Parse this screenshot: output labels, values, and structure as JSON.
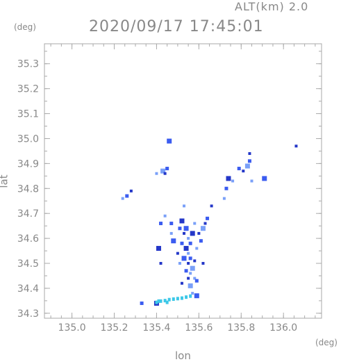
{
  "header": {
    "altitude_label": "ALT(km)  2.0",
    "timestamp": "2020/09/17 17:45:01"
  },
  "chart_data": {
    "type": "scatter",
    "title": "2020/09/17 17:45:01",
    "xlabel": "lon",
    "ylabel": "lat",
    "x_unit": "(deg)",
    "y_unit": "(deg)",
    "xlim": [
      134.87,
      136.18
    ],
    "ylim": [
      34.28,
      35.38
    ],
    "x_ticks": [
      "135.0",
      "135.2",
      "135.4",
      "135.6",
      "135.8",
      "136.0"
    ],
    "y_ticks": [
      "34.3",
      "34.4",
      "34.5",
      "34.6",
      "34.7",
      "34.8",
      "34.9",
      "35.0",
      "35.1",
      "35.2",
      "35.3"
    ],
    "grid": false,
    "colors": {
      "axis": "#888888",
      "echo_blue": "#3b5cf0",
      "echo_dark": "#2437c8",
      "echo_cyan": "#3cc8e8",
      "echo_light": "#7aa0f8"
    },
    "series": [
      {
        "points": [
          [
            135.54,
            34.64
          ],
          [
            135.53,
            34.62
          ],
          [
            135.55,
            34.6
          ],
          [
            135.56,
            34.58
          ],
          [
            135.54,
            34.56
          ],
          [
            135.55,
            34.54
          ],
          [
            135.56,
            34.52
          ],
          [
            135.55,
            34.5
          ],
          [
            135.57,
            34.48
          ],
          [
            135.54,
            34.47
          ],
          [
            135.58,
            34.51
          ],
          [
            135.56,
            34.46
          ],
          [
            135.53,
            34.52
          ],
          [
            135.55,
            34.44
          ],
          [
            135.58,
            34.44
          ],
          [
            135.52,
            34.58
          ],
          [
            135.57,
            34.62
          ],
          [
            135.59,
            34.56
          ],
          [
            135.51,
            34.64
          ],
          [
            135.6,
            34.62
          ],
          [
            135.62,
            34.64
          ],
          [
            135.64,
            34.68
          ],
          [
            135.63,
            34.66
          ],
          [
            135.47,
            34.62
          ],
          [
            135.48,
            34.59
          ],
          [
            135.5,
            34.54
          ],
          [
            135.51,
            34.5
          ],
          [
            135.47,
            34.66
          ],
          [
            135.52,
            34.67
          ],
          [
            135.58,
            34.66
          ],
          [
            135.61,
            34.59
          ],
          [
            135.62,
            34.5
          ],
          [
            135.56,
            34.41
          ],
          [
            135.59,
            34.43
          ],
          [
            135.52,
            34.42
          ],
          [
            135.57,
            34.38
          ],
          [
            135.59,
            34.37
          ],
          [
            135.42,
            34.5
          ],
          [
            135.44,
            34.69
          ],
          [
            135.42,
            34.66
          ],
          [
            135.41,
            34.56
          ],
          [
            135.24,
            34.76
          ],
          [
            135.26,
            34.77
          ],
          [
            135.28,
            34.79
          ],
          [
            135.43,
            34.87
          ],
          [
            135.45,
            34.88
          ],
          [
            135.44,
            34.86
          ],
          [
            135.4,
            34.86
          ],
          [
            135.46,
            34.99
          ],
          [
            135.66,
            34.73
          ],
          [
            135.72,
            34.76
          ],
          [
            135.73,
            34.8
          ],
          [
            135.74,
            34.84
          ],
          [
            135.76,
            34.83
          ],
          [
            135.79,
            34.88
          ],
          [
            135.81,
            34.87
          ],
          [
            135.83,
            34.89
          ],
          [
            135.84,
            34.91
          ],
          [
            135.84,
            34.94
          ],
          [
            135.85,
            34.83
          ],
          [
            135.91,
            34.84
          ],
          [
            136.06,
            34.97
          ],
          [
            135.53,
            34.73
          ],
          [
            135.33,
            34.34
          ],
          [
            135.4,
            34.34
          ]
        ]
      },
      {
        "points": [
          [
            135.4,
            34.345
          ],
          [
            135.42,
            34.35
          ],
          [
            135.44,
            34.352
          ],
          [
            135.46,
            34.356
          ],
          [
            135.48,
            34.358
          ],
          [
            135.5,
            34.36
          ],
          [
            135.52,
            34.362
          ],
          [
            135.54,
            34.366
          ],
          [
            135.56,
            34.37
          ],
          [
            135.41,
            34.35
          ],
          [
            135.45,
            34.345
          ]
        ]
      }
    ]
  }
}
